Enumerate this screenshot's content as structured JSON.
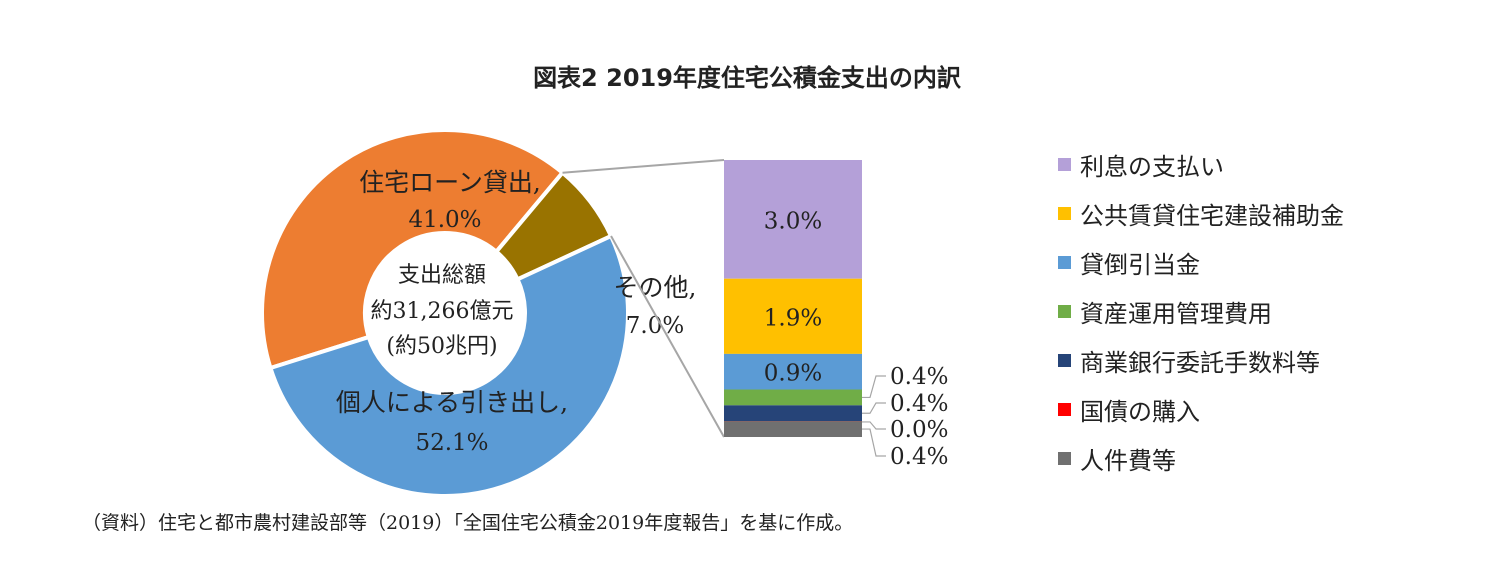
{
  "title": "図表2 2019年度住宅公積金支出の内訳",
  "source": "（資料）住宅と都市農村建設部等（2019）「全国住宅公積金2019年度報告」を基に作成。",
  "chart_data": [
    {
      "type": "pie",
      "style": "donut",
      "center_label": [
        "支出総額",
        "約31,266億元",
        "(約50兆円)"
      ],
      "slices": [
        {
          "name": "住宅ローン貸出,",
          "value": 41.0,
          "label": "41.0%",
          "color": "#ED7D31"
        },
        {
          "name": "その他,",
          "value": 7.0,
          "label": "7.0%",
          "color": "#997300"
        },
        {
          "name": "個人による引き出し,",
          "value": 52.1,
          "label": "52.1%",
          "color": "#5B9BD5"
        }
      ]
    },
    {
      "type": "bar",
      "stacked": true,
      "breakdown_of": "その他",
      "series": [
        {
          "name": "利息の支払い",
          "value": 3.0,
          "label": "3.0%",
          "color": "#B4A0D8"
        },
        {
          "name": "公共賃貸住宅建設補助金",
          "value": 1.9,
          "label": "1.9%",
          "color": "#FFC000"
        },
        {
          "name": "貸倒引当金",
          "value": 0.9,
          "label": "0.9%",
          "color": "#5B9BD5"
        },
        {
          "name": "資産運用管理費用",
          "value": 0.4,
          "label": "0.4%",
          "color": "#70AD47"
        },
        {
          "name": "商業銀行委託手数料等",
          "value": 0.4,
          "label": "0.4%",
          "color": "#264478"
        },
        {
          "name": "国債の購入",
          "value": 0.0,
          "label": "0.0%",
          "color": "#FF0000"
        },
        {
          "name": "人件費等",
          "value": 0.4,
          "label": "0.4%",
          "color": "#707070"
        }
      ]
    }
  ]
}
